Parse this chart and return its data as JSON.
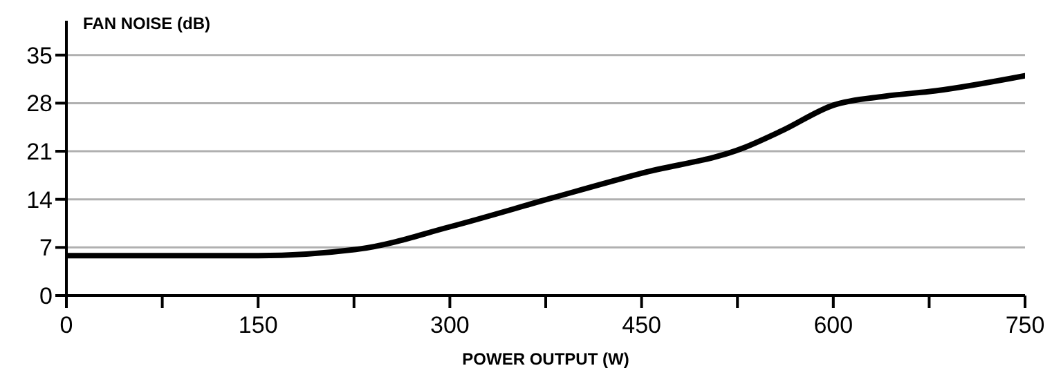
{
  "chart_data": {
    "type": "line",
    "xlabel": "POWER OUTPUT (W)",
    "ylabel": "FAN NOISE (dB)",
    "x": [
      0,
      150,
      230,
      300,
      380,
      450,
      530,
      560,
      600,
      640,
      680,
      750
    ],
    "series": [
      {
        "color": "#000000",
        "values": [
          5.8,
          5.8,
          6.8,
          10,
          14.2,
          17.8,
          21.5,
          24,
          27.7,
          29,
          29.8,
          32
        ]
      }
    ],
    "xlim": [
      0,
      750
    ],
    "xticks": [
      0,
      {
        "value": 75,
        "label": null
      },
      150,
      {
        "value": 225,
        "label": null
      },
      300,
      {
        "value": 375,
        "label": null
      },
      450,
      {
        "value": 525,
        "label": null
      },
      600,
      {
        "value": 675,
        "label": null
      },
      750
    ],
    "ylim": [
      0,
      40
    ],
    "yticks": [
      0,
      7,
      14,
      21,
      28,
      35
    ],
    "grid": "y",
    "marker": "none",
    "line_style": "solid"
  }
}
